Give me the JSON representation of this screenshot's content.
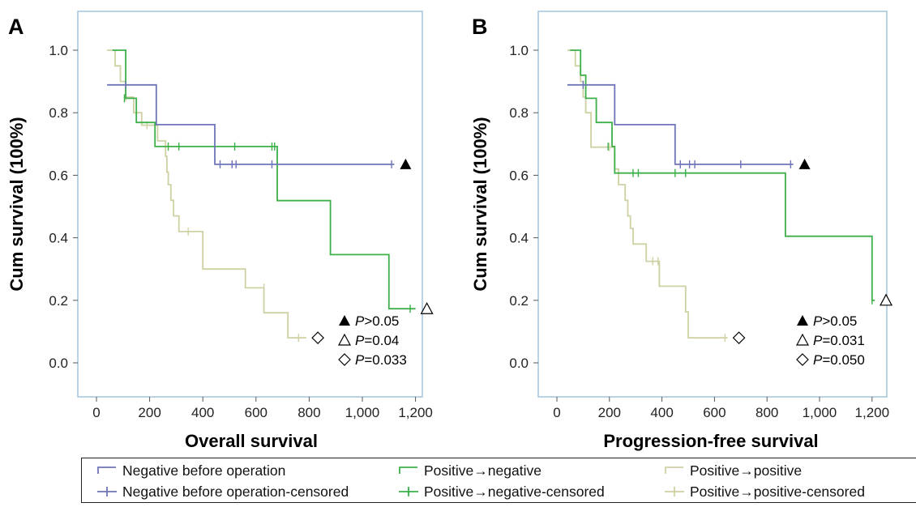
{
  "colors": {
    "negative": "#6e74b8",
    "pos_neg": "#3db04a",
    "pos_pos": "#cfd1a4",
    "frame": "#a9c8de"
  },
  "legend": {
    "items": [
      {
        "key": "neg",
        "label": "Negative before operation",
        "style": "step",
        "color": "#6e74b8"
      },
      {
        "key": "neg_c",
        "label": "Negative before operation-censored",
        "style": "censor",
        "color": "#6e74b8"
      },
      {
        "key": "pn",
        "label": "Positive→negative",
        "style": "step",
        "color": "#3db04a"
      },
      {
        "key": "pn_c",
        "label": "Positive→negative-censored",
        "style": "censor",
        "color": "#3db04a"
      },
      {
        "key": "pp",
        "label": "Positive→positive",
        "style": "step",
        "color": "#cfd1a4"
      },
      {
        "key": "pp_c",
        "label": "Positive→positive-censored",
        "style": "censor",
        "color": "#cfd1a4"
      }
    ]
  },
  "chart_data": [
    {
      "panel_label": "A",
      "type": "line",
      "subtype": "kaplan-meier",
      "xlabel": "Overall survival",
      "ylabel": "Cum survival (100%)",
      "xlim": [
        0,
        1250
      ],
      "ylim": [
        0,
        1.0
      ],
      "xticks": [
        0,
        200,
        400,
        600,
        800,
        1000,
        1200
      ],
      "xtick_labels": [
        "0",
        "200",
        "400",
        "600",
        "800",
        "1,000",
        "1,200"
      ],
      "yticks": [
        0.0,
        0.2,
        0.4,
        0.6,
        0.8,
        1.0
      ],
      "ytick_labels": [
        "0.0",
        "0.2",
        "0.4",
        "0.6",
        "0.8",
        "1.0"
      ],
      "series": [
        {
          "name": "Negative before operation",
          "color": "#6e74b8",
          "steps": [
            [
              40,
              0.889
            ],
            [
              225,
              0.762
            ],
            [
              445,
              0.635
            ],
            [
              1120,
              0.635
            ]
          ],
          "censored": [
            [
              110,
              0.889
            ],
            [
              465,
              0.635
            ],
            [
              510,
              0.635
            ],
            [
              525,
              0.635
            ],
            [
              660,
              0.635
            ],
            [
              1110,
              0.635
            ]
          ],
          "marker": "filled-triangle",
          "p_label": "P",
          "p_value": ">0.05"
        },
        {
          "name": "Positive→negative",
          "color": "#3db04a",
          "steps": [
            [
              60,
              1.0
            ],
            [
              110,
              0.846
            ],
            [
              150,
              0.769
            ],
            [
              220,
              0.692
            ],
            [
              680,
              0.519
            ],
            [
              880,
              0.346
            ],
            [
              1100,
              0.173
            ],
            [
              1200,
              0.173
            ]
          ],
          "censored": [
            [
              105,
              0.846
            ],
            [
              270,
              0.692
            ],
            [
              310,
              0.692
            ],
            [
              520,
              0.692
            ],
            [
              660,
              0.692
            ],
            [
              670,
              0.692
            ],
            [
              1180,
              0.173
            ]
          ],
          "marker": "open-triangle",
          "p_label": "P",
          "p_value": "=0.04"
        },
        {
          "name": "Positive→positive",
          "color": "#cfd1a4",
          "steps": [
            [
              40,
              1.0
            ],
            [
              70,
              0.95
            ],
            [
              90,
              0.9
            ],
            [
              110,
              0.85
            ],
            [
              140,
              0.8
            ],
            [
              170,
              0.76
            ],
            [
              210,
              0.76
            ],
            [
              230,
              0.71
            ],
            [
              260,
              0.66
            ],
            [
              265,
              0.61
            ],
            [
              270,
              0.57
            ],
            [
              280,
              0.52
            ],
            [
              290,
              0.47
            ],
            [
              310,
              0.42
            ],
            [
              400,
              0.3
            ],
            [
              560,
              0.24
            ],
            [
              630,
              0.16
            ],
            [
              720,
              0.08
            ],
            [
              790,
              0.08
            ]
          ],
          "censored": [
            [
              110,
              0.85
            ],
            [
              190,
              0.76
            ],
            [
              345,
              0.42
            ],
            [
              630,
              0.24
            ],
            [
              760,
              0.08
            ]
          ],
          "marker": "open-diamond",
          "p_label": "P",
          "p_value": "=0.033"
        }
      ]
    },
    {
      "panel_label": "B",
      "type": "line",
      "subtype": "kaplan-meier",
      "xlabel": "Progression-free survival",
      "ylabel": "Cum survival (100%)",
      "xlim": [
        0,
        1250
      ],
      "ylim": [
        0,
        1.0
      ],
      "xticks": [
        0,
        200,
        400,
        600,
        800,
        1000,
        1200
      ],
      "xtick_labels": [
        "0",
        "200",
        "400",
        "600",
        "800",
        "1,000",
        "1,200"
      ],
      "yticks": [
        0.0,
        0.2,
        0.4,
        0.6,
        0.8,
        1.0
      ],
      "ytick_labels": [
        "0.0",
        "0.2",
        "0.4",
        "0.6",
        "0.8",
        "1.0"
      ],
      "series": [
        {
          "name": "Negative before operation",
          "color": "#6e74b8",
          "steps": [
            [
              40,
              0.889
            ],
            [
              220,
              0.762
            ],
            [
              450,
              0.635
            ],
            [
              900,
              0.635
            ]
          ],
          "censored": [
            [
              100,
              0.889
            ],
            [
              470,
              0.635
            ],
            [
              505,
              0.635
            ],
            [
              525,
              0.635
            ],
            [
              700,
              0.635
            ],
            [
              890,
              0.635
            ]
          ],
          "marker": "filled-triangle",
          "p_label": "P",
          "p_value": ">0.05"
        },
        {
          "name": "Positive→negative",
          "color": "#3db04a",
          "steps": [
            [
              50,
              1.0
            ],
            [
              90,
              0.92
            ],
            [
              110,
              0.846
            ],
            [
              150,
              0.769
            ],
            [
              210,
              0.692
            ],
            [
              220,
              0.607
            ],
            [
              860,
              0.607
            ],
            [
              870,
              0.405
            ],
            [
              1195,
              0.405
            ],
            [
              1200,
              0.2
            ],
            [
              1210,
              0.2
            ]
          ],
          "censored": [
            [
              195,
              0.692
            ],
            [
              290,
              0.607
            ],
            [
              310,
              0.607
            ],
            [
              450,
              0.607
            ],
            [
              490,
              0.607
            ],
            [
              1200,
              0.2
            ]
          ],
          "marker": "open-triangle",
          "p_label": "P",
          "p_value": "=0.031"
        },
        {
          "name": "Positive→positive",
          "color": "#cfd1a4",
          "steps": [
            [
              40,
              1.0
            ],
            [
              70,
              0.95
            ],
            [
              90,
              0.9
            ],
            [
              100,
              0.85
            ],
            [
              110,
              0.8
            ],
            [
              130,
              0.69
            ],
            [
              200,
              0.69
            ],
            [
              220,
              0.62
            ],
            [
              235,
              0.57
            ],
            [
              260,
              0.52
            ],
            [
              270,
              0.47
            ],
            [
              280,
              0.43
            ],
            [
              290,
              0.38
            ],
            [
              340,
              0.325
            ],
            [
              390,
              0.245
            ],
            [
              490,
              0.163
            ],
            [
              500,
              0.08
            ],
            [
              650,
              0.08
            ]
          ],
          "censored": [
            [
              110,
              0.85
            ],
            [
              200,
              0.69
            ],
            [
              365,
              0.325
            ],
            [
              385,
              0.325
            ],
            [
              640,
              0.08
            ]
          ],
          "marker": "open-diamond",
          "p_label": "P",
          "p_value": "=0.050"
        }
      ]
    }
  ]
}
